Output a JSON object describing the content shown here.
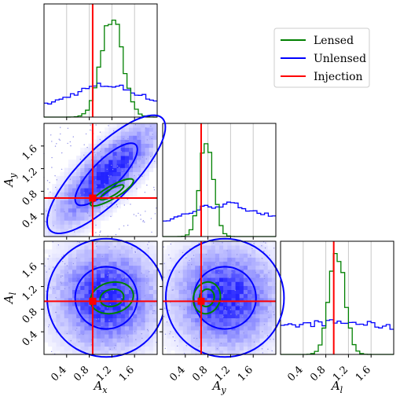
{
  "chart_data": {
    "type": "corner",
    "parameters": [
      "A_x",
      "A_y",
      "A_l"
    ],
    "axis_labels": {
      "A_x": {
        "base": "A",
        "sub": "x"
      },
      "A_y": {
        "base": "A",
        "sub": "y"
      },
      "A_l": {
        "base": "A",
        "sub": "l"
      }
    },
    "range": [
      0,
      2.0
    ],
    "ticks": [
      0.4,
      0.8,
      1.2,
      1.6
    ],
    "tick_labels": [
      "0.4",
      "0.8",
      "1.2",
      "1.6"
    ],
    "grid": true,
    "legend": {
      "placement": "top-right",
      "entries": [
        {
          "label": "Lensed",
          "color": "#008000"
        },
        {
          "label": "Unlensed",
          "color": "#0000ff"
        },
        {
          "label": "Injection",
          "color": "#ff0000"
        }
      ]
    },
    "injection": {
      "A_x": 0.86,
      "A_y": 0.68,
      "A_l": 0.94
    },
    "series": [
      {
        "name": "Lensed",
        "color": "#008000",
        "marginals": {
          "A_x": {
            "mean": 1.2,
            "std": 0.19
          },
          "A_y": {
            "mean": 0.78,
            "std": 0.12
          },
          "A_l": {
            "mean": 1.0,
            "std": 0.14
          }
        },
        "correlation": {
          "A_x-A_y": 0.85,
          "A_x-A_l": 0.15,
          "A_y-A_l": 0.1
        }
      },
      {
        "name": "Unlensed",
        "color": "#0000ff",
        "marginals": {
          "A_x": {
            "mean": 1.1,
            "std": 0.6
          },
          "A_y": {
            "mean": 1.1,
            "std": 0.7
          },
          "A_l": {
            "mean": 1.0,
            "std": 1.4
          }
        },
        "correlation": {
          "A_x-A_y": 0.8,
          "A_x-A_l": 0.0,
          "A_y-A_l": 0.0
        }
      }
    ]
  }
}
